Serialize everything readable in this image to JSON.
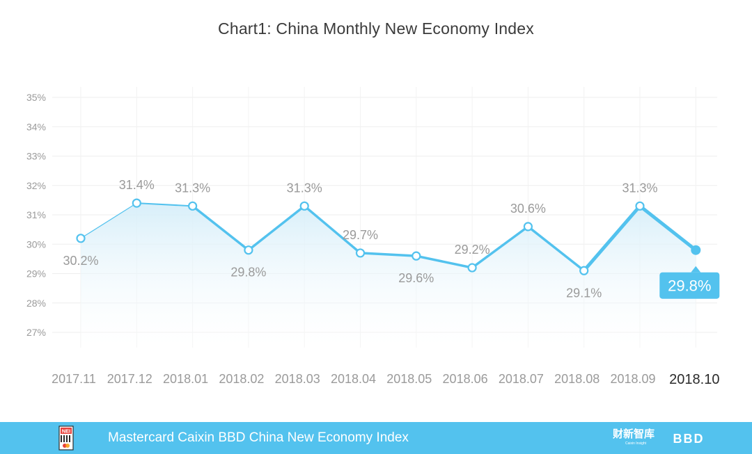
{
  "chart_data": {
    "type": "line",
    "title": "Chart1: China Monthly New Economy Index",
    "categories": [
      "2017.11",
      "2017.12",
      "2018.01",
      "2018.02",
      "2018.03",
      "2018.04",
      "2018.05",
      "2018.06",
      "2018.07",
      "2018.08",
      "2018.09",
      "2018.10"
    ],
    "values": [
      30.2,
      31.4,
      31.3,
      29.8,
      31.3,
      29.7,
      29.6,
      29.2,
      30.6,
      29.1,
      31.3,
      29.8
    ],
    "value_labels": [
      "30.2%",
      "31.4%",
      "31.3%",
      "29.8%",
      "31.3%",
      "29.7%",
      "29.6%",
      "29.2%",
      "30.6%",
      "29.1%",
      "31.3%",
      "29.8%"
    ],
    "ylim": [
      27,
      35
    ],
    "yticks": [
      "27%",
      "28%",
      "29%",
      "30%",
      "31%",
      "32%",
      "33%",
      "34%",
      "35%"
    ],
    "xlabel": "",
    "ylabel": "",
    "grid": true,
    "colors": {
      "line": "#53c2ee",
      "highlight_label_bg": "#53c2ee",
      "fill": "#d9f0fa",
      "grid": "#eeeeee"
    }
  },
  "footer": {
    "text": "Mastercard Caixin BBD China New Economy Index",
    "nei_logo_text": "NEI",
    "caixin_logo_text": "财新智库",
    "caixin_logo_sub": "Caixin Insight",
    "bbd_logo_text": "BBD"
  }
}
